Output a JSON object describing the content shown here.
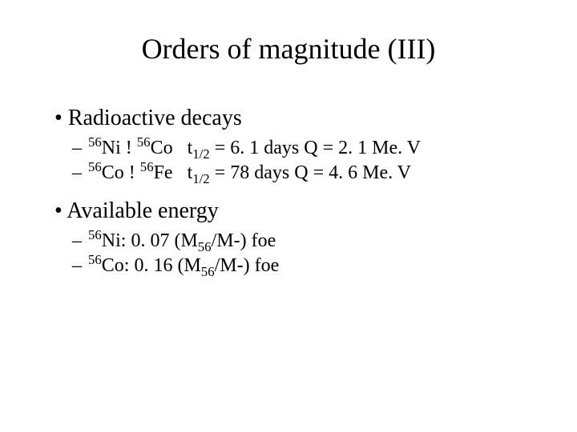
{
  "title": "Orders of magnitude (III)",
  "bullets": {
    "b1": "Radioactive decays",
    "b2": "Available energy"
  },
  "decay1": {
    "iso1_mass": "56",
    "iso1_el": "Ni",
    "arrow": " ! ",
    "iso2_mass": "56",
    "iso2_el": "Co",
    "tau": "t",
    "tau_sub": "1/2",
    "tau_val": " = 6. 1 days",
    "q": "  Q = 2. 1 Me. V"
  },
  "decay2": {
    "iso1_mass": "56",
    "iso1_el": "Co",
    "arrow": " ! ",
    "iso2_mass": "56",
    "iso2_el": "Fe",
    "tau": "t",
    "tau_sub": "1/2",
    "tau_val": " = 78 days",
    "q": "  Q = 4. 6 Me. V"
  },
  "energy1": {
    "mass": "56",
    "el": "Ni",
    "val": ": 0. 07 (M",
    "msub": "56",
    "rest": "/M",
    "sun": "-",
    "close": ") foe"
  },
  "energy2": {
    "mass": "56",
    "el": "Co",
    "val": ": 0. 16 (M",
    "msub": "56",
    "rest": "/M",
    "sun": "-",
    "close": ") foe"
  },
  "typography": {
    "title_fontsize": 36,
    "bullet_fontsize": 28,
    "sub_fontsize": 24,
    "font_family": "Times New Roman",
    "text_color": "#000000",
    "background_color": "#ffffff"
  }
}
